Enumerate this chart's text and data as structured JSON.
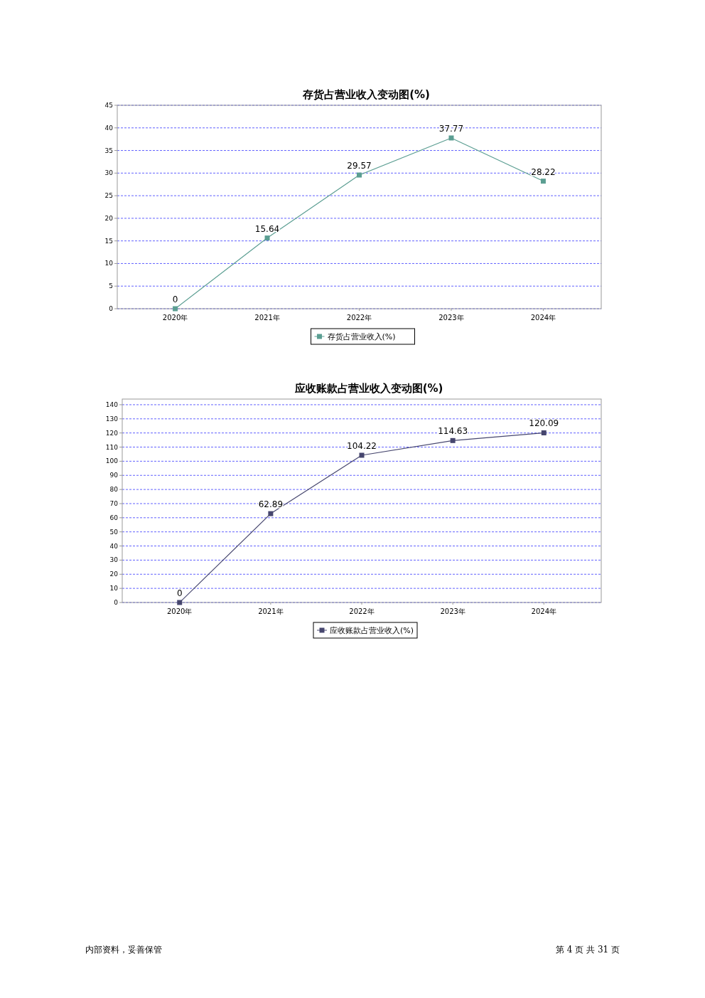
{
  "chart_data": [
    {
      "type": "line",
      "title": "存货占营业收入变动图(%)",
      "categories": [
        "2020年",
        "2021年",
        "2022年",
        "2023年",
        "2024年"
      ],
      "series": [
        {
          "name": "存货占营业收入(%)",
          "color": "#5b9e92",
          "values": [
            0,
            15.64,
            29.57,
            37.77,
            28.22
          ]
        }
      ],
      "ylim": [
        0,
        45
      ],
      "yticks": [
        0,
        5,
        10,
        15,
        20,
        25,
        30,
        35,
        40,
        45
      ],
      "grid": "y",
      "legend": "bottom",
      "marker": "square",
      "data_labels": true
    },
    {
      "type": "line",
      "title": "应收账款占营业收入变动图(%)",
      "categories": [
        "2020年",
        "2021年",
        "2022年",
        "2023年",
        "2024年"
      ],
      "series": [
        {
          "name": "应收账款占营业收入(%)",
          "color": "#46466e",
          "values": [
            0,
            62.89,
            104.22,
            114.63,
            120.09
          ]
        }
      ],
      "ylim": [
        0,
        144
      ],
      "yticks": [
        0,
        10,
        20,
        30,
        40,
        50,
        60,
        70,
        80,
        90,
        100,
        110,
        120,
        130,
        140
      ],
      "grid": "y",
      "legend": "bottom",
      "marker": "square",
      "data_labels": true,
      "annotations": [
        "内部资料，妥善保管",
        "第 4 页 共 31 页"
      ]
    }
  ]
}
